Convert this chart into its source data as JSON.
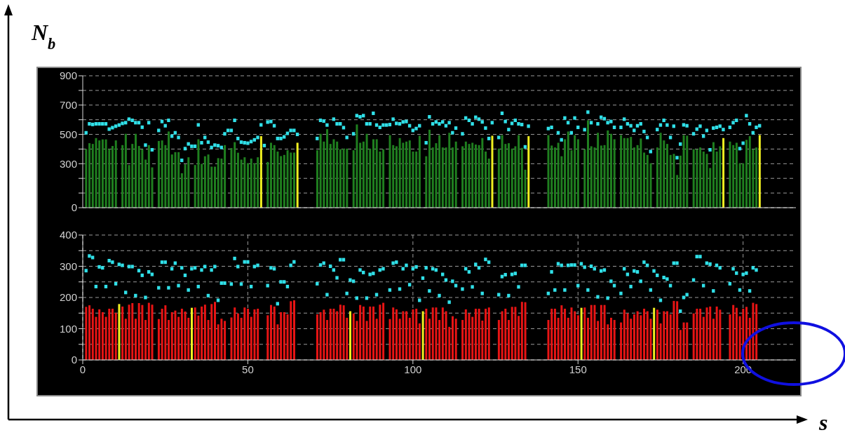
{
  "chart_data": [
    {
      "type": "bar",
      "ylabel": "N$_{b}$",
      "xlim": [
        0,
        216
      ],
      "xticks": [
        0,
        50,
        100,
        150,
        200
      ],
      "ylim": [
        0,
        900
      ],
      "yticks": [
        0,
        {
          "value": 100,
          "label": null
        },
        {
          "value": 200,
          "label": null
        },
        300,
        {
          "value": 400,
          "label": null
        },
        500,
        {
          "value": 600,
          "label": null
        },
        700,
        {
          "value": 800,
          "label": null
        },
        900
      ],
      "grid": true,
      "tick_labels": "y",
      "marker": "square",
      "x": [
        1,
        2,
        3,
        4,
        5,
        6,
        7,
        8,
        9,
        10,
        11,
        12,
        13,
        14,
        15,
        16,
        17,
        18,
        19,
        20,
        21,
        22,
        23,
        24,
        25,
        26,
        27,
        28,
        29,
        30,
        31,
        32,
        33,
        34,
        35,
        36,
        37,
        38,
        39,
        40,
        41,
        42,
        43,
        44,
        45,
        46,
        47,
        48,
        49,
        50,
        51,
        52,
        53,
        54,
        55,
        56,
        57,
        58,
        59,
        60,
        61,
        62,
        63,
        64,
        65,
        66,
        67,
        68,
        69,
        70,
        71,
        72,
        73,
        74,
        75,
        76,
        77,
        78,
        79,
        80,
        81,
        82,
        83,
        84,
        85,
        86,
        87,
        88,
        89,
        90,
        91,
        92,
        93,
        94,
        95,
        96,
        97,
        98,
        99,
        100,
        101,
        102,
        103,
        104,
        105,
        106,
        107,
        108,
        109,
        110,
        111,
        112,
        113,
        114,
        115,
        116,
        117,
        118,
        119,
        120,
        121,
        122,
        123,
        124,
        125,
        126,
        127,
        128,
        129,
        130,
        131,
        132,
        133,
        134,
        135,
        136,
        137,
        138,
        139,
        140,
        141,
        142,
        143,
        144,
        145,
        146,
        147,
        148,
        149,
        150,
        151,
        152,
        153,
        154,
        155,
        156,
        157,
        158,
        159,
        160,
        161,
        162,
        163,
        164,
        165,
        166,
        167,
        168,
        169,
        170,
        171,
        172,
        173,
        174,
        175,
        176,
        177,
        178,
        179,
        180,
        181,
        182,
        183,
        184,
        185,
        186,
        187,
        188,
        189,
        190,
        191,
        192,
        193,
        194,
        195,
        196,
        197,
        198,
        199,
        200,
        201,
        202,
        203,
        204,
        205
      ],
      "series": [
        {
          "color": "#1f7f1f",
          "values": [
            400,
            440,
            435,
            475,
            459,
            466,
            466,
            400,
            421,
            459,
            null,
            427,
            504,
            291,
            435,
            504,
            421,
            399,
            328,
            427,
            275,
            null,
            455,
            459,
            427,
            520,
            363,
            379,
            379,
            235,
            296,
            344,
            null,
            291,
            467,
            299,
            351,
            363,
            280,
            280,
            338,
            335,
            427,
            null,
            407,
            447,
            375,
            328,
            344,
            303,
            335,
            303,
            344,
            488,
            null,
            312,
            443,
            427,
            383,
            352,
            360,
            392,
            376,
            376,
            443,
            null,
            null,
            null,
            null,
            null,
            392,
            504,
            451,
            536,
            435,
            467,
            451,
            399,
            403,
            403,
            null,
            392,
            568,
            443,
            451,
            504,
            403,
            467,
            467,
            383,
            399,
            null,
            495,
            427,
            419,
            475,
            443,
            451,
            459,
            383,
            383,
            491,
            null,
            351,
            532,
            411,
            440,
            495,
            411,
            411,
            511,
            411,
            451,
            null,
            419,
            451,
            435,
            443,
            431,
            427,
            475,
            383,
            335,
            491,
            null,
            403,
            495,
            435,
            440,
            403,
            419,
            495,
            408,
            259,
            488,
            null,
            null,
            null,
            null,
            null,
            495,
            424,
            411,
            443,
            351,
            467,
            520,
            392,
            495,
            467,
            null,
            399,
            596,
            419,
            411,
            511,
            424,
            427,
            527,
            504,
            467,
            null,
            495,
            475,
            475,
            483,
            411,
            427,
            472,
            376,
            360,
            303,
            null,
            411,
            511,
            459,
            435,
            360,
            367,
            223,
            355,
            495,
            491,
            null,
            399,
            399,
            411,
            383,
            367,
            271,
            447,
            383,
            419,
            475,
            null,
            451,
            427,
            443,
            303,
            303,
            463,
            488,
            399,
            411,
            495
          ],
          "colors": [
            "#1f7f1f",
            "#1f7f1f",
            "#1f7f1f",
            "#1f7f1f",
            "#1f7f1f",
            "#1f7f1f",
            "#1f7f1f",
            "#1f7f1f",
            "#1f7f1f",
            "#1f7f1f",
            "#1f7f1f",
            "#1f7f1f",
            "#1f7f1f",
            "#1f7f1f",
            "#1f7f1f",
            "#1f7f1f",
            "#1f7f1f",
            "#1f7f1f",
            "#1f7f1f",
            "#1f7f1f",
            "#1f7f1f",
            "#1f7f1f",
            "#1f7f1f",
            "#1f7f1f",
            "#1f7f1f",
            "#1f7f1f",
            "#1f7f1f",
            "#1f7f1f",
            "#1f7f1f",
            "#1f7f1f",
            "#1f7f1f",
            "#1f7f1f",
            "#1f7f1f",
            "#1f7f1f",
            "#1f7f1f",
            "#1f7f1f",
            "#1f7f1f",
            "#1f7f1f",
            "#1f7f1f",
            "#1f7f1f",
            "#1f7f1f",
            "#1f7f1f",
            "#1f7f1f",
            "#1f7f1f",
            "#1f7f1f",
            "#1f7f1f",
            "#1f7f1f",
            "#1f7f1f",
            "#1f7f1f",
            "#1f7f1f",
            "#1f7f1f",
            "#1f7f1f",
            "#1f7f1f",
            "#f0f020",
            "#1f7f1f",
            "#1f7f1f",
            "#1f7f1f",
            "#1f7f1f",
            "#1f7f1f",
            "#1f7f1f",
            "#1f7f1f",
            "#1f7f1f",
            "#1f7f1f",
            "#1f7f1f",
            "#f0f020",
            "#1f7f1f",
            "#1f7f1f",
            "#1f7f1f",
            "#1f7f1f",
            "#1f7f1f",
            "#1f7f1f",
            "#1f7f1f",
            "#1f7f1f",
            "#1f7f1f",
            "#1f7f1f",
            "#1f7f1f",
            "#1f7f1f",
            "#1f7f1f",
            "#1f7f1f",
            "#1f7f1f",
            "#1f7f1f",
            "#1f7f1f",
            "#1f7f1f",
            "#1f7f1f",
            "#1f7f1f",
            "#1f7f1f",
            "#1f7f1f",
            "#1f7f1f",
            "#1f7f1f",
            "#1f7f1f",
            "#1f7f1f",
            "#1f7f1f",
            "#1f7f1f",
            "#1f7f1f",
            "#1f7f1f",
            "#1f7f1f",
            "#1f7f1f",
            "#1f7f1f",
            "#1f7f1f",
            "#1f7f1f",
            "#1f7f1f",
            "#1f7f1f",
            "#1f7f1f",
            "#1f7f1f",
            "#1f7f1f",
            "#1f7f1f",
            "#1f7f1f",
            "#1f7f1f",
            "#1f7f1f",
            "#1f7f1f",
            "#1f7f1f",
            "#1f7f1f",
            "#1f7f1f",
            "#1f7f1f",
            "#1f7f1f",
            "#1f7f1f",
            "#1f7f1f",
            "#1f7f1f",
            "#1f7f1f",
            "#1f7f1f",
            "#1f7f1f",
            "#1f7f1f",
            "#1f7f1f",
            "#f0f020",
            "#1f7f1f",
            "#1f7f1f",
            "#1f7f1f",
            "#1f7f1f",
            "#1f7f1f",
            "#1f7f1f",
            "#1f7f1f",
            "#1f7f1f",
            "#1f7f1f",
            "#1f7f1f",
            "#f0f020",
            "#1f7f1f",
            "#1f7f1f",
            "#1f7f1f",
            "#1f7f1f",
            "#1f7f1f",
            "#1f7f1f",
            "#1f7f1f",
            "#1f7f1f",
            "#1f7f1f",
            "#1f7f1f",
            "#1f7f1f",
            "#1f7f1f",
            "#1f7f1f",
            "#1f7f1f",
            "#1f7f1f",
            "#1f7f1f",
            "#1f7f1f",
            "#1f7f1f",
            "#1f7f1f",
            "#1f7f1f",
            "#1f7f1f",
            "#1f7f1f",
            "#1f7f1f",
            "#1f7f1f",
            "#1f7f1f",
            "#1f7f1f",
            "#1f7f1f",
            "#1f7f1f",
            "#1f7f1f",
            "#1f7f1f",
            "#1f7f1f",
            "#1f7f1f",
            "#1f7f1f",
            "#1f7f1f",
            "#1f7f1f",
            "#1f7f1f",
            "#1f7f1f",
            "#1f7f1f",
            "#1f7f1f",
            "#1f7f1f",
            "#1f7f1f",
            "#1f7f1f",
            "#1f7f1f",
            "#1f7f1f",
            "#1f7f1f",
            "#1f7f1f",
            "#1f7f1f",
            "#1f7f1f",
            "#1f7f1f",
            "#1f7f1f",
            "#1f7f1f",
            "#1f7f1f",
            "#1f7f1f",
            "#1f7f1f",
            "#1f7f1f",
            "#1f7f1f",
            "#1f7f1f",
            "#1f7f1f",
            "#f0f020",
            "#1f7f1f",
            "#1f7f1f",
            "#1f7f1f",
            "#1f7f1f",
            "#1f7f1f",
            "#1f7f1f",
            "#1f7f1f",
            "#1f7f1f",
            "#1f7f1f",
            "#1f7f1f",
            "#f0f020"
          ]
        },
        {
          "type": "scatter",
          "color": "#30e0e8",
          "values": [
            511,
            572,
            568,
            572,
            572,
            572,
            572,
            536,
            546,
            556,
            564,
            575,
            580,
            604,
            596,
            580,
            580,
            549,
            427,
            580,
            395,
            null,
            527,
            588,
            559,
            596,
            488,
            511,
            479,
            323,
            403,
            435,
            419,
            419,
            565,
            443,
            479,
            447,
            411,
            427,
            423,
            411,
            504,
            527,
            527,
            596,
            472,
            447,
            443,
            440,
            451,
            463,
            479,
            565,
            424,
            584,
            588,
            559,
            472,
            472,
            483,
            507,
            527,
            527,
            500,
            null,
            null,
            null,
            null,
            null,
            472,
            596,
            591,
            564,
            null,
            604,
            572,
            572,
            546,
            479,
            null,
            504,
            628,
            620,
            628,
            572,
            572,
            644,
            564,
            548,
            564,
            564,
            567,
            604,
            575,
            572,
            585,
            588,
            559,
            527,
            540,
            559,
            null,
            443,
            620,
            572,
            585,
            572,
            585,
            559,
            580,
            511,
            543,
            null,
            504,
            612,
            596,
            572,
            617,
            604,
            585,
            543,
            472,
            580,
            null,
            479,
            644,
            588,
            533,
            575,
            596,
            572,
            567,
            415,
            556,
            null,
            null,
            null,
            null,
            null,
            540,
            548,
            null,
            511,
            463,
            612,
            580,
            511,
            612,
            548,
            null,
            532,
            652,
            580,
            null,
            572,
            617,
            607,
            580,
            588,
            548,
            null,
            548,
            604,
            572,
            559,
            527,
            559,
            572,
            520,
            479,
            383,
            null,
            533,
            564,
            596,
            564,
            479,
            556,
            341,
            434,
            565,
            559,
            null,
            504,
            536,
            556,
            488,
            527,
            395,
            543,
            548,
            556,
            533,
            null,
            548,
            580,
            596,
            403,
            440,
            628,
            572,
            511,
            548,
            559
          ]
        }
      ]
    },
    {
      "type": "bar",
      "xlabel": "s",
      "xlim": [
        0,
        216
      ],
      "xticks": [
        0,
        50,
        100,
        150,
        200
      ],
      "ylim": [
        0,
        400
      ],
      "yticks": [
        0,
        {
          "value": 50,
          "label": null
        },
        100,
        {
          "value": 150,
          "label": null
        },
        200,
        {
          "value": 250,
          "label": null
        },
        300,
        {
          "value": 350,
          "label": null
        },
        400
      ],
      "grid": true,
      "marker": "square",
      "x": [
        1,
        2,
        3,
        4,
        5,
        6,
        7,
        8,
        9,
        10,
        11,
        12,
        13,
        14,
        15,
        16,
        17,
        18,
        19,
        20,
        21,
        22,
        23,
        24,
        25,
        26,
        27,
        28,
        29,
        30,
        31,
        32,
        33,
        34,
        35,
        36,
        37,
        38,
        39,
        40,
        41,
        42,
        43,
        44,
        45,
        46,
        47,
        48,
        49,
        50,
        51,
        52,
        53,
        54,
        55,
        56,
        57,
        58,
        59,
        60,
        61,
        62,
        63,
        64,
        65,
        66,
        67,
        68,
        69,
        70,
        71,
        72,
        73,
        74,
        75,
        76,
        77,
        78,
        79,
        80,
        81,
        82,
        83,
        84,
        85,
        86,
        87,
        88,
        89,
        90,
        91,
        92,
        93,
        94,
        95,
        96,
        97,
        98,
        99,
        100,
        101,
        102,
        103,
        104,
        105,
        106,
        107,
        108,
        109,
        110,
        111,
        112,
        113,
        114,
        115,
        116,
        117,
        118,
        119,
        120,
        121,
        122,
        123,
        124,
        125,
        126,
        127,
        128,
        129,
        130,
        131,
        132,
        133,
        134,
        135,
        136,
        137,
        138,
        139,
        140,
        141,
        142,
        143,
        144,
        145,
        146,
        147,
        148,
        149,
        150,
        151,
        152,
        153,
        154,
        155,
        156,
        157,
        158,
        159,
        160,
        161,
        162,
        163,
        164,
        165,
        166,
        167,
        168,
        169,
        170,
        171,
        172,
        173,
        174,
        175,
        176,
        177,
        178,
        179,
        180,
        181,
        182,
        183,
        184,
        185,
        186,
        187,
        188,
        189,
        190,
        191,
        192,
        193,
        194,
        195,
        196,
        197,
        198,
        199,
        200,
        201,
        202,
        203,
        204
      ],
      "series": [
        {
          "color": "#e81414",
          "values": [
            170,
            175,
            164,
            138,
            162,
            153,
            138,
            164,
            164,
            151,
            179,
            171,
            132,
            177,
            182,
            132,
            182,
            176,
            128,
            183,
            177,
            null,
            131,
            164,
            175,
            128,
            153,
            158,
            138,
            164,
            155,
            135,
            167,
            168,
            142,
            171,
            177,
            128,
            179,
            186,
            114,
            132,
            125,
            null,
            136,
            168,
            149,
            135,
            168,
            164,
            138,
            162,
            164,
            null,
            null,
            143,
            176,
            171,
            114,
            153,
            153,
            146,
            188,
            191,
            null,
            null,
            null,
            null,
            null,
            null,
            146,
            153,
            161,
            128,
            164,
            164,
            156,
            177,
            175,
            135,
            156,
            149,
            125,
            176,
            171,
            125,
            171,
            171,
            132,
            177,
            183,
            null,
            131,
            168,
            162,
            132,
            156,
            156,
            135,
            162,
            164,
            117,
            156,
            164,
            132,
            168,
            168,
            128,
            168,
            156,
            106,
            140,
            132,
            null,
            128,
            162,
            149,
            138,
            164,
            164,
            126,
            164,
            168,
            null,
            null,
            128,
            156,
            164,
            128,
            170,
            170,
            141,
            186,
            185,
            null,
            null,
            null,
            null,
            null,
            null,
            128,
            164,
            164,
            135,
            175,
            164,
            135,
            168,
            156,
            143,
            167,
            168,
            135,
            176,
            176,
            125,
            176,
            176,
            114,
            135,
            128,
            null,
            120,
            161,
            149,
            132,
            146,
            156,
            143,
            164,
            156,
            132,
            167,
            161,
            117,
            156,
            156,
            146,
            189,
            188,
            96,
            120,
            120,
            null,
            149,
            164,
            164,
            138,
            168,
            171,
            132,
            171,
            161,
            null,
            null,
            146,
            176,
            167,
            140,
            164,
            170,
            135,
            183,
            179
          ],
          "colors": [
            "#e81414",
            "#e81414",
            "#e81414",
            "#e81414",
            "#e81414",
            "#e81414",
            "#e81414",
            "#e81414",
            "#e81414",
            "#e81414",
            "#f0f020",
            "#e81414",
            "#e81414",
            "#e81414",
            "#e81414",
            "#e81414",
            "#e81414",
            "#e81414",
            "#e81414",
            "#e81414",
            "#e81414",
            "#e81414",
            "#e81414",
            "#e81414",
            "#e81414",
            "#e81414",
            "#e81414",
            "#e81414",
            "#e81414",
            "#e81414",
            "#e81414",
            "#e81414",
            "#f0f020",
            "#e81414",
            "#e81414",
            "#e81414",
            "#e81414",
            "#e81414",
            "#e81414",
            "#e81414",
            "#e81414",
            "#e81414",
            "#e81414",
            "#e81414",
            "#e81414",
            "#e81414",
            "#e81414",
            "#e81414",
            "#e81414",
            "#e81414",
            "#e81414",
            "#e81414",
            "#e81414",
            "#e81414",
            "#e81414",
            "#e81414",
            "#e81414",
            "#e81414",
            "#e81414",
            "#e81414",
            "#e81414",
            "#e81414",
            "#e81414",
            "#e81414",
            "#e81414",
            "#e81414",
            "#e81414",
            "#e81414",
            "#e81414",
            "#e81414",
            "#e81414",
            "#e81414",
            "#e81414",
            "#e81414",
            "#e81414",
            "#e81414",
            "#e81414",
            "#e81414",
            "#e81414",
            "#e81414",
            "#f0f020",
            "#e81414",
            "#e81414",
            "#e81414",
            "#e81414",
            "#e81414",
            "#e81414",
            "#e81414",
            "#e81414",
            "#e81414",
            "#e81414",
            "#e81414",
            "#e81414",
            "#e81414",
            "#e81414",
            "#e81414",
            "#e81414",
            "#e81414",
            "#e81414",
            "#e81414",
            "#e81414",
            "#e81414",
            "#f0f020",
            "#e81414",
            "#e81414",
            "#e81414",
            "#e81414",
            "#e81414",
            "#e81414",
            "#e81414",
            "#e81414",
            "#e81414",
            "#e81414",
            "#e81414",
            "#e81414",
            "#e81414",
            "#e81414",
            "#e81414",
            "#e81414",
            "#e81414",
            "#e81414",
            "#e81414",
            "#e81414",
            "#e81414",
            "#e81414",
            "#e81414",
            "#e81414",
            "#e81414",
            "#e81414",
            "#e81414",
            "#e81414",
            "#e81414",
            "#e81414",
            "#e81414",
            "#e81414",
            "#e81414",
            "#e81414",
            "#e81414",
            "#e81414",
            "#e81414",
            "#e81414",
            "#e81414",
            "#e81414",
            "#e81414",
            "#e81414",
            "#e81414",
            "#e81414",
            "#e81414",
            "#e81414",
            "#e81414",
            "#f0f020",
            "#e81414",
            "#e81414",
            "#e81414",
            "#e81414",
            "#e81414",
            "#e81414",
            "#e81414",
            "#e81414",
            "#e81414",
            "#e81414",
            "#e81414",
            "#e81414",
            "#e81414",
            "#e81414",
            "#e81414",
            "#e81414",
            "#e81414",
            "#e81414",
            "#e81414",
            "#e81414",
            "#e81414",
            "#f0f020",
            "#e81414",
            "#e81414",
            "#e81414",
            "#e81414",
            "#e81414",
            "#e81414",
            "#e81414",
            "#e81414",
            "#e81414",
            "#e81414",
            "#e81414",
            "#e81414",
            "#e81414",
            "#e81414",
            "#e81414",
            "#e81414",
            "#e81414",
            "#e81414",
            "#e81414",
            "#e81414",
            "#e81414",
            "#e81414",
            "#e81414",
            "#e81414",
            "#e81414",
            "#e81414",
            "#e81414",
            "#e81414",
            "#e81414",
            "#e81414",
            "#e81414"
          ]
        },
        {
          "type": "scatter",
          "color": "#30e0e8",
          "values": [
            286,
            333,
            328,
            235,
            298,
            295,
            235,
            318,
            313,
            244,
            306,
            303,
            216,
            299,
            299,
            206,
            286,
            271,
            200,
            282,
            274,
            null,
            231,
            313,
            313,
            231,
            292,
            310,
            238,
            295,
            271,
            224,
            292,
            295,
            235,
            288,
            299,
            206,
            288,
            299,
            191,
            246,
            246,
            null,
            243,
            325,
            299,
            243,
            314,
            314,
            235,
            299,
            303,
            null,
            null,
            238,
            295,
            292,
            180,
            250,
            250,
            235,
            303,
            314,
            null,
            null,
            null,
            null,
            null,
            null,
            244,
            304,
            310,
            209,
            300,
            288,
            263,
            321,
            321,
            213,
            256,
            252,
            198,
            288,
            280,
            198,
            274,
            277,
            209,
            288,
            292,
            null,
            224,
            310,
            313,
            227,
            292,
            303,
            241,
            292,
            298,
            191,
            262,
            295,
            221,
            292,
            288,
            206,
            274,
            256,
            185,
            252,
            238,
            null,
            227,
            292,
            282,
            234,
            306,
            295,
            213,
            322,
            313,
            null,
            null,
            209,
            267,
            273,
            206,
            274,
            277,
            234,
            303,
            303,
            null,
            null,
            null,
            null,
            null,
            null,
            213,
            282,
            224,
            308,
            303,
            224,
            303,
            304,
            304,
            238,
            308,
            297,
            224,
            300,
            292,
            202,
            285,
            288,
            198,
            252,
            238,
            null,
            213,
            292,
            274,
            235,
            285,
            282,
            252,
            313,
            303,
            224,
            285,
            271,
            191,
            264,
            259,
            238,
            310,
            310,
            156,
            200,
            209,
            null,
            256,
            331,
            331,
            238,
            310,
            307,
            221,
            303,
            295,
            null,
            null,
            244,
            292,
            278,
            224,
            274,
            278,
            221,
            295,
            288
          ]
        }
      ]
    }
  ]
}
